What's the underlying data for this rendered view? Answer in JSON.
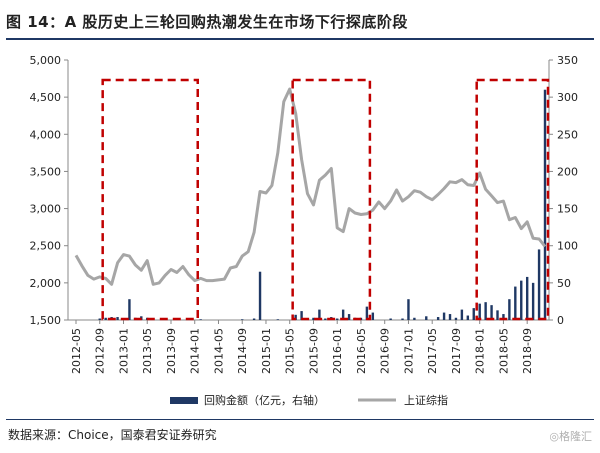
{
  "title": "图 14：A 股历史上三轮回购热潮发生在市场下行探底阶段",
  "source": "数据来源：Choice，国泰君安证券研究",
  "watermark": "◎格隆汇",
  "colors": {
    "bars": "#1f3864",
    "line": "#a6a6a6",
    "box": "#c00000",
    "rule": "#1f3864"
  },
  "chart_data": {
    "type": "bar+line",
    "x_ticks": [
      "2012-05",
      "2012-09",
      "2013-01",
      "2013-05",
      "2013-09",
      "2014-01",
      "2014-05",
      "2014-09",
      "2015-01",
      "2015-05",
      "2015-09",
      "2016-01",
      "2016-05",
      "2016-09",
      "2017-01",
      "2017-05",
      "2017-09",
      "2018-01",
      "2018-05",
      "2018-09"
    ],
    "left_axis": {
      "ticks": [
        "1,500",
        "2,000",
        "2,500",
        "3,000",
        "3,500",
        "4,000",
        "4,500",
        "5,000"
      ],
      "values": [
        1500,
        2000,
        2500,
        3000,
        3500,
        4000,
        4500,
        5000
      ],
      "ylim": [
        1500,
        5000
      ]
    },
    "right_axis": {
      "ticks": [
        "0",
        "50",
        "100",
        "150",
        "200",
        "250",
        "300",
        "350"
      ],
      "values": [
        0,
        50,
        100,
        150,
        200,
        250,
        300,
        350
      ],
      "ylim": [
        0,
        350
      ]
    },
    "series": [
      {
        "name": "回购金额（亿元，右轴）",
        "kind": "bar",
        "axis": "right",
        "points": [
          [
            "2012-09",
            2
          ],
          [
            "2012-10",
            3
          ],
          [
            "2012-11",
            4
          ],
          [
            "2012-12",
            4
          ],
          [
            "2013-01",
            2
          ],
          [
            "2013-02",
            28
          ],
          [
            "2013-03",
            3
          ],
          [
            "2013-04",
            5
          ],
          [
            "2013-05",
            3
          ],
          [
            "2013-06",
            2
          ],
          [
            "2013-08",
            2
          ],
          [
            "2014-02",
            1
          ],
          [
            "2014-09",
            1
          ],
          [
            "2014-11",
            2
          ],
          [
            "2014-12",
            65
          ],
          [
            "2015-03",
            1
          ],
          [
            "2015-06",
            7
          ],
          [
            "2015-07",
            12
          ],
          [
            "2015-08",
            2
          ],
          [
            "2015-09",
            3
          ],
          [
            "2015-10",
            14
          ],
          [
            "2015-11",
            2
          ],
          [
            "2015-12",
            4
          ],
          [
            "2016-01",
            2
          ],
          [
            "2016-02",
            14
          ],
          [
            "2016-03",
            8
          ],
          [
            "2016-04",
            3
          ],
          [
            "2016-05",
            3
          ],
          [
            "2016-06",
            18
          ],
          [
            "2016-07",
            10
          ],
          [
            "2016-10",
            2
          ],
          [
            "2016-12",
            2
          ],
          [
            "2017-01",
            28
          ],
          [
            "2017-02",
            3
          ],
          [
            "2017-04",
            5
          ],
          [
            "2017-06",
            4
          ],
          [
            "2017-07",
            10
          ],
          [
            "2017-08",
            8
          ],
          [
            "2017-09",
            3
          ],
          [
            "2017-10",
            14
          ],
          [
            "2017-11",
            6
          ],
          [
            "2017-12",
            16
          ],
          [
            "2018-01",
            22
          ],
          [
            "2018-02",
            24
          ],
          [
            "2018-03",
            20
          ],
          [
            "2018-04",
            13
          ],
          [
            "2018-05",
            8
          ],
          [
            "2018-06",
            28
          ],
          [
            "2018-07",
            45
          ],
          [
            "2018-08",
            53
          ],
          [
            "2018-09",
            58
          ],
          [
            "2018-10",
            50
          ],
          [
            "2018-11",
            95
          ],
          [
            "2018-12",
            310
          ]
        ]
      },
      {
        "name": "上证综指",
        "kind": "line",
        "axis": "left",
        "points": [
          [
            "2012-05",
            2370
          ],
          [
            "2012-06",
            2230
          ],
          [
            "2012-07",
            2100
          ],
          [
            "2012-08",
            2050
          ],
          [
            "2012-09",
            2080
          ],
          [
            "2012-10",
            2060
          ],
          [
            "2012-11",
            1980
          ],
          [
            "2012-12",
            2270
          ],
          [
            "2013-01",
            2380
          ],
          [
            "2013-02",
            2360
          ],
          [
            "2013-03",
            2240
          ],
          [
            "2013-04",
            2170
          ],
          [
            "2013-05",
            2300
          ],
          [
            "2013-06",
            1980
          ],
          [
            "2013-07",
            2000
          ],
          [
            "2013-08",
            2100
          ],
          [
            "2013-09",
            2180
          ],
          [
            "2013-10",
            2140
          ],
          [
            "2013-11",
            2220
          ],
          [
            "2013-12",
            2110
          ],
          [
            "2014-01",
            2030
          ],
          [
            "2014-02",
            2060
          ],
          [
            "2014-03",
            2030
          ],
          [
            "2014-04",
            2030
          ],
          [
            "2014-05",
            2040
          ],
          [
            "2014-06",
            2050
          ],
          [
            "2014-07",
            2200
          ],
          [
            "2014-08",
            2220
          ],
          [
            "2014-09",
            2360
          ],
          [
            "2014-10",
            2420
          ],
          [
            "2014-11",
            2680
          ],
          [
            "2014-12",
            3230
          ],
          [
            "2015-01",
            3210
          ],
          [
            "2015-02",
            3310
          ],
          [
            "2015-03",
            3750
          ],
          [
            "2015-04",
            4440
          ],
          [
            "2015-05",
            4610
          ],
          [
            "2015-06",
            4280
          ],
          [
            "2015-07",
            3660
          ],
          [
            "2015-08",
            3200
          ],
          [
            "2015-09",
            3050
          ],
          [
            "2015-10",
            3380
          ],
          [
            "2015-11",
            3450
          ],
          [
            "2015-12",
            3540
          ],
          [
            "2016-01",
            2740
          ],
          [
            "2016-02",
            2690
          ],
          [
            "2016-03",
            3000
          ],
          [
            "2016-04",
            2940
          ],
          [
            "2016-05",
            2920
          ],
          [
            "2016-06",
            2930
          ],
          [
            "2016-07",
            2980
          ],
          [
            "2016-08",
            3090
          ],
          [
            "2016-09",
            3000
          ],
          [
            "2016-10",
            3100
          ],
          [
            "2016-11",
            3250
          ],
          [
            "2016-12",
            3100
          ],
          [
            "2017-01",
            3160
          ],
          [
            "2017-02",
            3240
          ],
          [
            "2017-03",
            3220
          ],
          [
            "2017-04",
            3160
          ],
          [
            "2017-05",
            3120
          ],
          [
            "2017-06",
            3190
          ],
          [
            "2017-07",
            3270
          ],
          [
            "2017-08",
            3360
          ],
          [
            "2017-09",
            3350
          ],
          [
            "2017-10",
            3390
          ],
          [
            "2017-11",
            3320
          ],
          [
            "2017-12",
            3310
          ],
          [
            "2018-01",
            3480
          ],
          [
            "2018-02",
            3260
          ],
          [
            "2018-03",
            3170
          ],
          [
            "2018-04",
            3080
          ],
          [
            "2018-05",
            3100
          ],
          [
            "2018-06",
            2850
          ],
          [
            "2018-07",
            2880
          ],
          [
            "2018-08",
            2730
          ],
          [
            "2018-09",
            2820
          ],
          [
            "2018-10",
            2600
          ],
          [
            "2018-11",
            2590
          ],
          [
            "2018-12",
            2490
          ]
        ]
      }
    ],
    "highlight_periods": [
      {
        "from": "2012-10",
        "to": "2014-01"
      },
      {
        "from": "2015-06",
        "to": "2016-06"
      },
      {
        "from": "2018-01",
        "to": "2018-12"
      }
    ],
    "grid": false,
    "legend_position": "bottom"
  }
}
